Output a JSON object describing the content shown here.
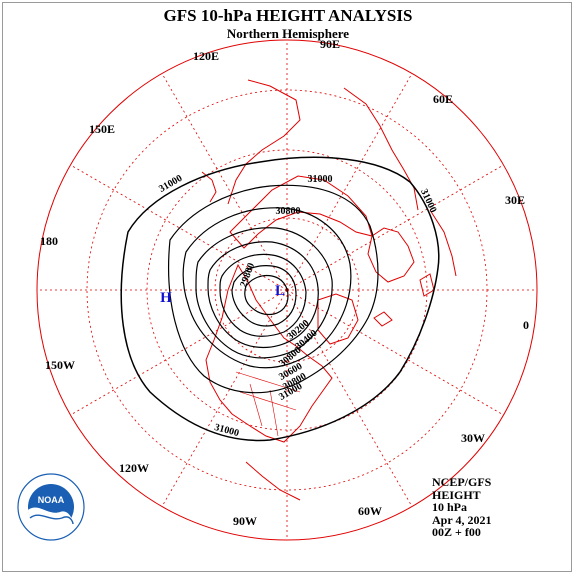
{
  "title": "GFS 10-hPa HEIGHT ANALYSIS",
  "subtitle": "Northern Hemisphere",
  "longitude_labels": [
    "90E",
    "60E",
    "30E",
    "0",
    "30W",
    "60W",
    "90W",
    "120W",
    "150W",
    "180",
    "150E",
    "120E"
  ],
  "contour_labels": [
    "31000",
    "31000",
    "31000",
    "30800",
    "29800",
    "30200",
    "30400",
    "30800",
    "30600",
    "30800",
    "31000",
    "31000"
  ],
  "centers": {
    "high": "H",
    "low": "L"
  },
  "info": {
    "line1": "NCEP/GFS",
    "line2": "HEIGHT",
    "line3": "10 hPa",
    "line4": "Apr 4, 2021",
    "line5": "00Z + f00"
  },
  "logo": {
    "text": "NOAA",
    "ring_text": "NATIONAL OCEANIC AND ATMOSPHERIC ADMINISTRATION"
  },
  "colors": {
    "map_lines": "#e00000",
    "contours": "#000000",
    "centers": "#1010d0",
    "logo_blue": "#1a5fb4"
  }
}
